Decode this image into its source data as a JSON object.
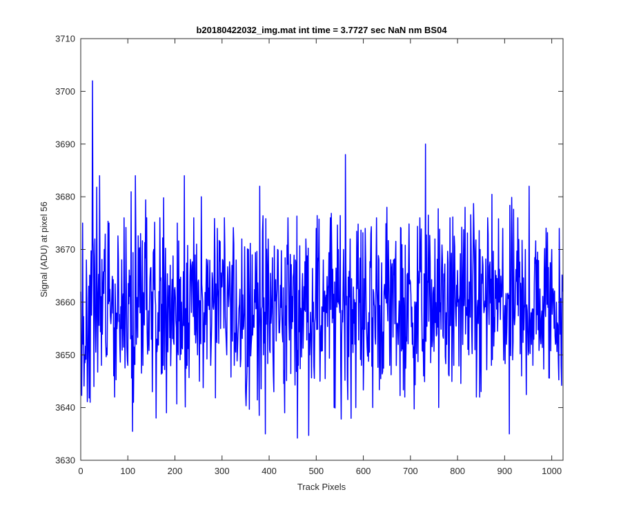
{
  "chart_data": {
    "type": "line",
    "title": "b20180422032_img.mat int time = 3.7727 sec  NaN nm BS04",
    "xlabel": "Track Pixels",
    "ylabel": "Signal (ADU) at pixel 56",
    "xlim": [
      0,
      1024
    ],
    "ylim": [
      3630,
      3710
    ],
    "xticks": [
      0,
      100,
      200,
      300,
      400,
      500,
      600,
      700,
      800,
      900,
      1000
    ],
    "yticks": [
      3630,
      3640,
      3650,
      3660,
      3670,
      3680,
      3690,
      3700,
      3710
    ],
    "grid": false,
    "series": [
      {
        "color": "#0000ff",
        "n_points": 1024,
        "mean": 3659,
        "typical_range": [
          3645,
          3674
        ],
        "x": [
          0,
          4,
          8,
          12,
          16,
          20,
          24,
          25,
          28,
          30,
          35,
          40,
          44,
          50,
          56,
          60,
          65,
          72,
          80,
          86,
          92,
          100,
          105,
          112,
          116,
          118,
          124,
          132,
          140,
          146,
          152,
          155,
          160,
          164,
          168,
          175,
          182,
          190,
          198,
          205,
          214,
          220,
          226,
          232,
          240,
          248,
          252,
          256,
          262,
          270,
          276,
          283,
          290,
          297,
          305,
          310,
          318,
          326,
          330,
          335,
          342,
          350,
          356,
          362,
          370,
          378,
          380,
          388,
          392,
          396,
          404,
          410,
          418,
          425,
          433,
          440,
          448,
          456,
          462,
          470,
          478,
          486,
          494,
          500,
          508,
          515,
          522,
          530,
          538,
          546,
          552,
          558,
          562,
          566,
          572,
          580,
          588,
          596,
          604,
          612,
          620,
          628,
          636,
          644,
          650,
          656,
          664,
          672,
          680,
          688,
          696,
          704,
          712,
          720,
          728,
          732,
          736,
          744,
          752,
          760,
          768,
          776,
          784,
          792,
          800,
          808,
          816,
          824,
          832,
          840,
          848,
          856,
          864,
          872,
          880,
          888,
          896,
          904,
          910,
          914,
          920,
          928,
          936,
          944,
          952,
          956,
          960,
          968,
          976,
          984,
          992,
          1000,
          1008,
          1016,
          1020,
          1023
        ],
        "y": [
          3662,
          3675,
          3650,
          3668,
          3655,
          3641,
          3665,
          3702,
          3644,
          3672,
          3660,
          3684,
          3648,
          3670,
          3650,
          3675,
          3658,
          3642,
          3668,
          3655,
          3676,
          3648,
          3665,
          3641,
          3684,
          3652,
          3670,
          3648,
          3676,
          3660,
          3643,
          3670,
          3638,
          3658,
          3676,
          3648,
          3639,
          3667,
          3652,
          3675,
          3660,
          3684,
          3648,
          3665,
          3676,
          3650,
          3645,
          3680,
          3658,
          3668,
          3648,
          3660,
          3674,
          3655,
          3676,
          3650,
          3660,
          3648,
          3668,
          3656,
          3672,
          3643,
          3670,
          3652,
          3660,
          3648,
          3682,
          3650,
          3635,
          3665,
          3656,
          3643,
          3670,
          3659,
          3639,
          3676,
          3655,
          3668,
          3648,
          3662,
          3672,
          3650,
          3660,
          3674,
          3645,
          3668,
          3658,
          3676,
          3640,
          3660,
          3648,
          3670,
          3688,
          3646,
          3672,
          3656,
          3666,
          3648,
          3674,
          3658,
          3640,
          3676,
          3652,
          3662,
          3678,
          3648,
          3668,
          3656,
          3674,
          3642,
          3666,
          3652,
          3660,
          3676,
          3646,
          3690,
          3664,
          3655,
          3672,
          3640,
          3668,
          3658,
          3676,
          3648,
          3666,
          3656,
          3678,
          3650,
          3662,
          3642,
          3670,
          3658,
          3676,
          3648,
          3666,
          3660,
          3674,
          3652,
          3635,
          3668,
          3658,
          3676,
          3646,
          3670,
          3682,
          3658,
          3648,
          3668,
          3654,
          3666,
          3659,
          3670,
          3652,
          3674,
          3648,
          3662
        ]
      }
    ]
  }
}
